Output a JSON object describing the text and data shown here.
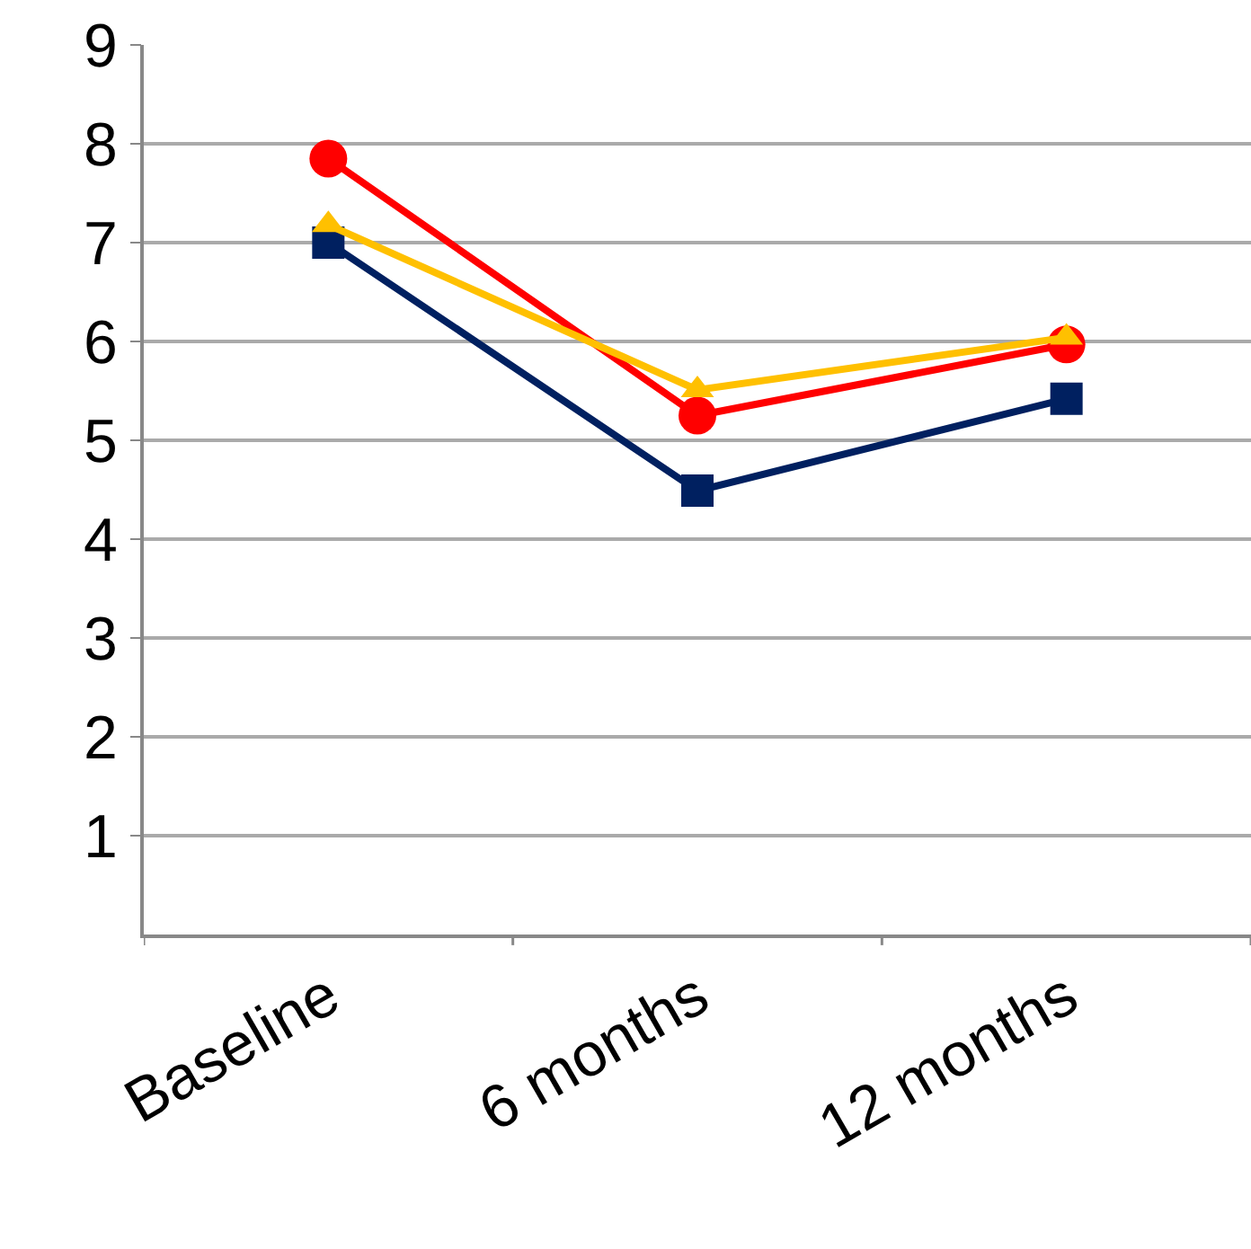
{
  "chart_data": {
    "type": "line",
    "categories": [
      "Baseline",
      "6 months",
      "12 months"
    ],
    "series": [
      {
        "color": "#ff0000",
        "marker": "circle",
        "values": [
          7.85,
          5.25,
          5.97
        ]
      },
      {
        "color": "#002060",
        "marker": "square",
        "values": [
          7.0,
          4.49,
          5.42
        ]
      },
      {
        "color": "#ffc000",
        "marker": "triangle",
        "values": [
          7.18,
          5.51,
          6.04
        ]
      }
    ],
    "ylim": [
      0,
      9
    ],
    "yticks": [
      1,
      2,
      3,
      4,
      5,
      6,
      7,
      8,
      9
    ],
    "grid": "y",
    "legend": false
  }
}
